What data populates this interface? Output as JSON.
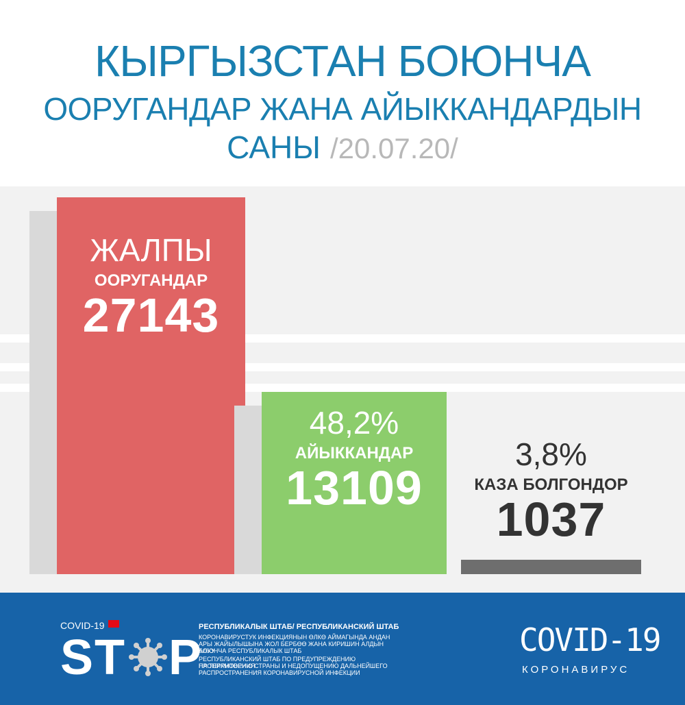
{
  "header": {
    "title_line1": "КЫРГЫЗСТАН БОЮНЧА",
    "title_line2": "ООРУГАНДАР ЖАНА АЙЫККАНДАРДЫН",
    "title_line3": "САНЫ",
    "date": "/20.07.20/"
  },
  "chart_data": {
    "type": "bar",
    "categories": [
      "ЖАЛПЫ ООРУГАНДАР",
      "АЙЫККАНДАР",
      "КАЗА БОЛГОНДОР"
    ],
    "values": [
      27143,
      13109,
      1037
    ],
    "percentages": [
      "",
      "48,2%",
      "3,8%"
    ],
    "colors": [
      "#e06464",
      "#8ccd6c",
      "#6e6e6e"
    ],
    "bars": [
      {
        "big": "ЖАЛПЫ",
        "small": "ООРУГАНДАР",
        "number": "27143"
      },
      {
        "big": "48,2%",
        "small": "АЙЫККАНДАР",
        "number": "13109"
      },
      {
        "big": "3,8%",
        "small": "КАЗА БОЛГОНДОР",
        "number": "1037"
      }
    ]
  },
  "footer": {
    "covid_label": "COVID-19",
    "stop_text": "ST",
    "stop_text_end": "P",
    "org_title": "РЕСПУБЛИКАЛЫК ШТАБ/ РЕСПУБЛИКАНСКИЙ ШТАБ",
    "org_ky_1": "КОРОНАВИРУСТУК ИНФЕКЦИЯНЫН ӨЛКӨ АЙМАГЫНДА АНДАН",
    "org_ky_2": "АРЫ ЖАЙЫЛЫШЫНА ЖОЛ БЕРБӨӨ ЖАНА КИРИШИН АЛДЫН АЛУУ",
    "org_ky_3": "БОЮНЧА РЕСПУБЛИКАЛЫК ШТАБ",
    "org_ru_1": "РЕСПУБЛИКАНСКИЙ ШТАБ ПО ПРЕДУПРЕЖДЕНИЮ ПРОНИКНОВЕНИЯ",
    "org_ru_2": "НА ТЕРРИТОРИЮ СТРАНЫ И НЕДОПУЩЕНИЮ ДАЛЬНЕЙШЕГО",
    "org_ru_3": "РАСПРОСТРАНЕНИЯ КОРОНАВИРУСНОЙ ИНФЕКЦИИ",
    "brand_title": "COVID-19",
    "brand_sub": "КОРОНАВИРУС"
  }
}
